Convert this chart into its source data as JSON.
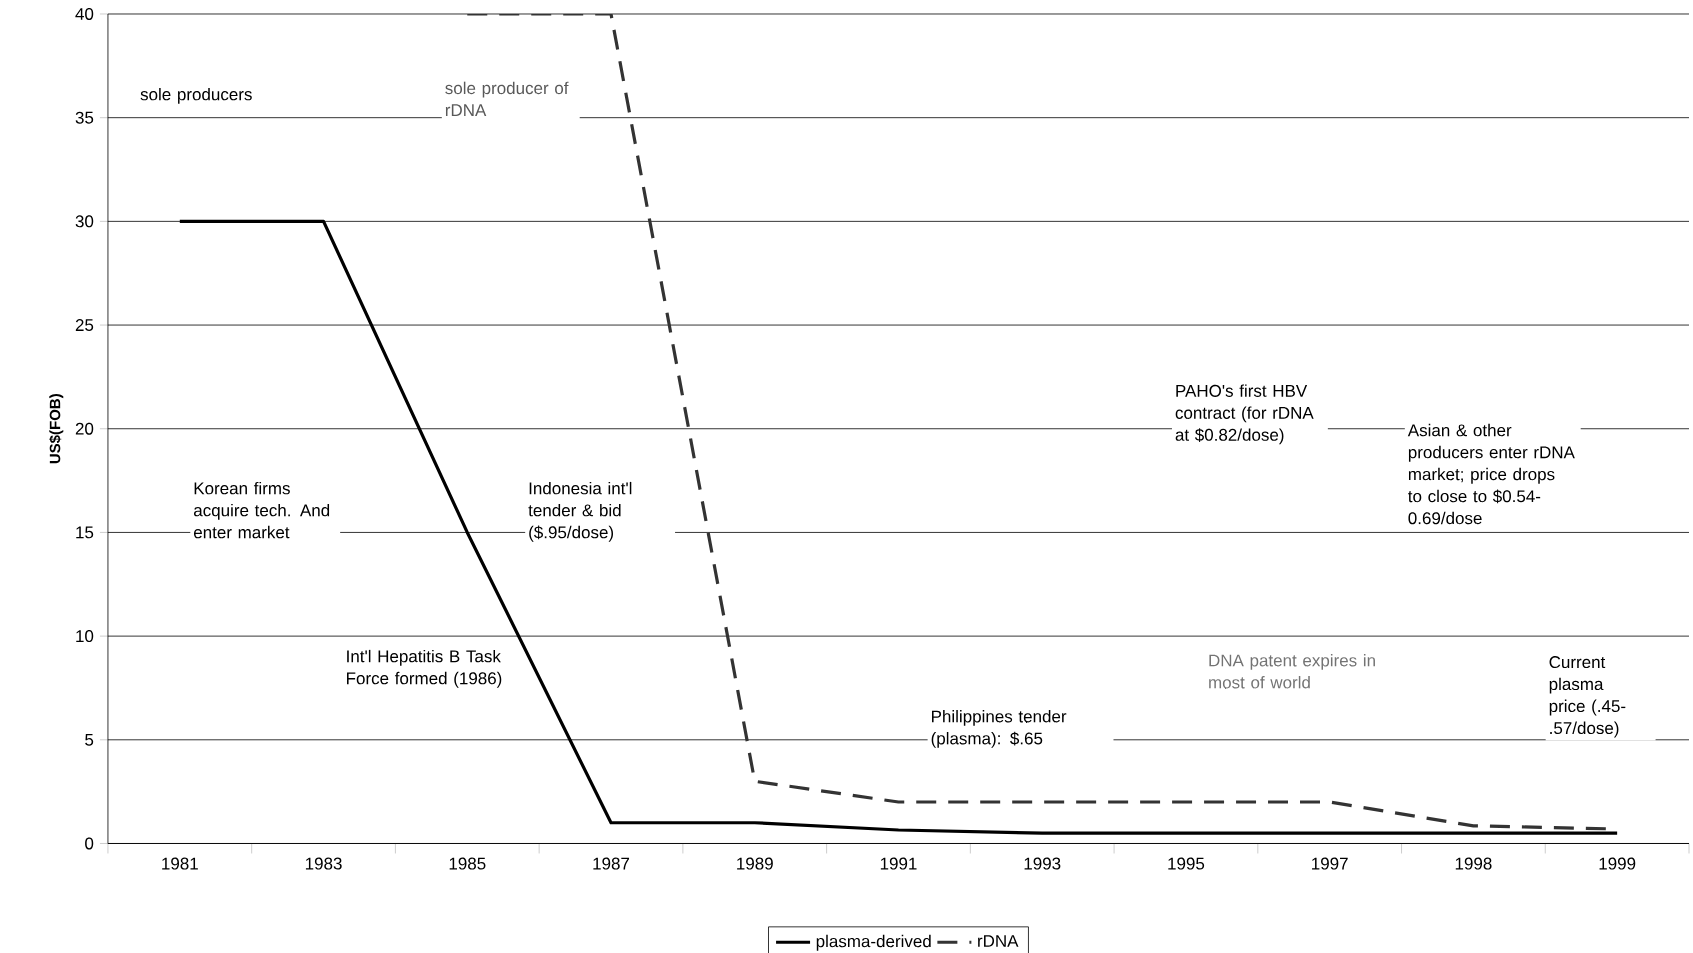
{
  "chart_data": {
    "type": "line",
    "ylabel": "US$(FOB)",
    "categories": [
      "1981",
      "1983",
      "1985",
      "1987",
      "1989",
      "1991",
      "1993",
      "1995",
      "1997",
      "1998",
      "1999"
    ],
    "series": [
      {
        "name": "plasma-derived",
        "color": "#000000",
        "line_style": "solid",
        "values": [
          30,
          30,
          15,
          1,
          1,
          0.65,
          0.5,
          0.5,
          0.5,
          0.5,
          0.5
        ]
      },
      {
        "name": "rDNA",
        "color": "#333333",
        "line_style": "dashed",
        "values": [
          null,
          null,
          40,
          40,
          3,
          2,
          2,
          2,
          2,
          0.85,
          0.7
        ]
      }
    ],
    "ylim": [
      0,
      40
    ],
    "yticks": [
      0,
      5,
      10,
      15,
      20,
      25,
      30,
      35,
      40
    ],
    "grid": "y",
    "legend": "bottom",
    "marker": "none",
    "annotations": [
      "sole producers",
      "sole producer of rDNA",
      "Korean firms acquire tech. And enter market",
      "Int'l Hepatitis B Task Force formed (1986)",
      "Indonesia int'l tender & bid ($.95/dose)",
      "Philippines tender (plasma): $.65",
      "DNA patent expires in most of world",
      "PAHO's first HBV contract (for rDNA at $0.82/dose)",
      "Asian & other producers enter rDNA market; price drops to close to $0.54-0.69/dose",
      "Current plasma price (.45-.57/dose)"
    ]
  }
}
